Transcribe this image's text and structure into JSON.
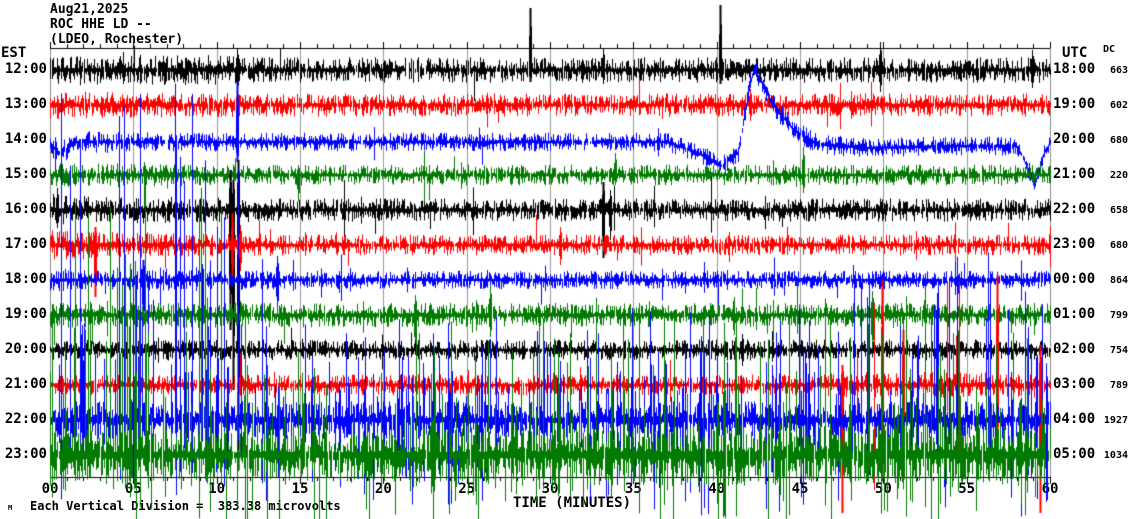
{
  "header": {
    "date": "Aug21,2025",
    "station": "ROC HHE LD --",
    "location": "(LDEO, Rochester)"
  },
  "footer": {
    "scale_note": "Each Vertical Division =  383.38 microvolts",
    "corner_mark": "M"
  },
  "colors": {
    "black": "#000000",
    "red": "#ff0000",
    "blue": "#0000ff",
    "green": "#007a00",
    "grid": "#999999",
    "frame_side": "#8c8c8c",
    "frame_main": "#000000",
    "background": "#ffffff"
  },
  "chart_data": {
    "type": "line",
    "description": "Helicorder seismogram, 12 hourly trace rows of continuous noise, colors cycling black/red/blue/green. Rows listed top to bottom with EST start time (left axis), UTC start time (right axis) and DC offset value (far right column). Large event on 14:00 EST (blue) trace near minute 42; very high amplitude on last two rows.",
    "x_label": "TIME (MINUTES)",
    "x_range_minutes": [
      0,
      60
    ],
    "x_ticks": [
      "00",
      "05",
      "10",
      "15",
      "20",
      "25",
      "30",
      "35",
      "40",
      "45",
      "50",
      "55",
      "60"
    ],
    "left_axis_header": "EST",
    "right_axis_header": "UTC",
    "dc_header": "DC",
    "grid_interval_minutes": 5,
    "minor_tick_minutes": 1,
    "rows": [
      {
        "est": "12:00",
        "utc": "18:00",
        "dc": "663",
        "color": "black",
        "band": [
          [
            0,
            13
          ],
          [
            10,
            13
          ],
          [
            12,
            11
          ],
          [
            60,
            11
          ]
        ],
        "spike_p": 0.012,
        "spike_up": [
          [
            0,
            25
          ],
          [
            60,
            25
          ]
        ],
        "spike_dn": [
          [
            0,
            25
          ],
          [
            60,
            25
          ]
        ],
        "spikes": [
          [
            11.2,
            22,
            22
          ],
          [
            28.8,
            62,
            12
          ],
          [
            33.2,
            22,
            14
          ],
          [
            40.2,
            65,
            14
          ],
          [
            49.8,
            28,
            22
          ],
          [
            58.9,
            20,
            18
          ]
        ]
      },
      {
        "est": "13:00",
        "utc": "19:00",
        "dc": "602",
        "color": "red",
        "band": [
          [
            0,
            12
          ],
          [
            12,
            10
          ],
          [
            60,
            10
          ]
        ],
        "spike_p": 0.01,
        "spike_up": [
          [
            0,
            22
          ],
          [
            60,
            20
          ]
        ],
        "spike_dn": [
          [
            0,
            24
          ],
          [
            60,
            20
          ]
        ],
        "spikes": [
          [
            11.2,
            15,
            40
          ],
          [
            42.0,
            16,
            16
          ]
        ]
      },
      {
        "est": "14:00",
        "utc": "20:00",
        "dc": "680",
        "color": "blue",
        "band": [
          [
            0,
            10
          ],
          [
            12,
            8
          ],
          [
            38,
            8
          ],
          [
            44,
            9
          ],
          [
            60,
            8
          ]
        ],
        "spike_p": 0.008,
        "spike_up": [
          [
            0,
            20
          ],
          [
            60,
            18
          ]
        ],
        "spike_dn": [
          [
            0,
            22
          ],
          [
            60,
            18
          ]
        ],
        "baseline": [
          [
            0,
            4
          ],
          [
            0.6,
            14
          ],
          [
            1.5,
            2
          ],
          [
            37,
            2
          ],
          [
            39,
            14
          ],
          [
            40.3,
            26
          ],
          [
            41.3,
            12
          ],
          [
            41.8,
            -40
          ],
          [
            42.2,
            -72
          ],
          [
            42.6,
            -60
          ],
          [
            43.4,
            -34
          ],
          [
            44.6,
            -10
          ],
          [
            46,
            4
          ],
          [
            49,
            8
          ],
          [
            54,
            6
          ],
          [
            58,
            6
          ],
          [
            58.7,
            30
          ],
          [
            59.1,
            42
          ],
          [
            59.6,
            14
          ],
          [
            60,
            2
          ]
        ],
        "spikes": [
          [
            11.2,
            60,
            20
          ]
        ]
      },
      {
        "est": "15:00",
        "utc": "21:00",
        "dc": "220",
        "color": "green",
        "band": [
          [
            0,
            11
          ],
          [
            12,
            9
          ],
          [
            60,
            9
          ]
        ],
        "spike_p": 0.012,
        "spike_up": [
          [
            0,
            26
          ],
          [
            60,
            22
          ]
        ],
        "spike_dn": [
          [
            0,
            24
          ],
          [
            60,
            22
          ]
        ],
        "spikes": [
          [
            14.9,
            10,
            26
          ],
          [
            33.9,
            22,
            10
          ],
          [
            45.2,
            28,
            18
          ]
        ]
      },
      {
        "est": "16:00",
        "utc": "22:00",
        "dc": "658",
        "color": "black",
        "band": [
          [
            0,
            13
          ],
          [
            13,
            10
          ],
          [
            60,
            10
          ]
        ],
        "spike_p": 0.015,
        "spike_up": [
          [
            0,
            26
          ],
          [
            60,
            22
          ]
        ],
        "spike_dn": [
          [
            0,
            28
          ],
          [
            60,
            22
          ]
        ],
        "spikes": [
          [
            0.4,
            22,
            18
          ],
          [
            10.8,
            40,
            120
          ],
          [
            11.0,
            30,
            180
          ],
          [
            11.3,
            50,
            260
          ],
          [
            33.2,
            28,
            48
          ],
          [
            33.6,
            20,
            30
          ]
        ]
      },
      {
        "est": "17:00",
        "utc": "23:00",
        "dc": "680",
        "color": "red",
        "band": [
          [
            0,
            13
          ],
          [
            13,
            9
          ],
          [
            60,
            9
          ]
        ],
        "spike_p": 0.012,
        "spike_up": [
          [
            0,
            24
          ],
          [
            60,
            20
          ]
        ],
        "spike_dn": [
          [
            0,
            26
          ],
          [
            60,
            20
          ]
        ],
        "spikes": [
          [
            2.7,
            18,
            52
          ],
          [
            10.9,
            32,
            34
          ],
          [
            11.4,
            20,
            26
          ],
          [
            30.6,
            18,
            20
          ]
        ]
      },
      {
        "est": "18:00",
        "utc": "00:00",
        "dc": "864",
        "color": "blue",
        "band": [
          [
            0,
            10
          ],
          [
            15,
            8
          ],
          [
            60,
            8
          ]
        ],
        "spike_p": 0.03,
        "spike_up": [
          [
            0,
            30
          ],
          [
            30,
            22
          ],
          [
            60,
            14
          ]
        ],
        "spike_dn": [
          [
            0,
            36
          ],
          [
            30,
            26
          ],
          [
            60,
            16
          ]
        ],
        "spikes": [
          [
            5.6,
            20,
            44
          ],
          [
            9.1,
            16,
            38
          ],
          [
            13.6,
            24,
            30
          ]
        ]
      },
      {
        "est": "19:00",
        "utc": "01:00",
        "dc": "799",
        "color": "green",
        "band": [
          [
            0,
            11
          ],
          [
            60,
            10
          ]
        ],
        "spike_p": 0.025,
        "spike_up": [
          [
            0,
            26
          ],
          [
            60,
            24
          ]
        ],
        "spike_dn": [
          [
            0,
            30
          ],
          [
            60,
            28
          ]
        ],
        "spikes": [
          [
            21.9,
            20,
            40
          ],
          [
            26.4,
            30,
            22
          ],
          [
            49.3,
            24,
            36
          ]
        ]
      },
      {
        "est": "20:00",
        "utc": "02:00",
        "dc": "754",
        "color": "black",
        "band": [
          [
            0,
            9
          ],
          [
            60,
            9
          ]
        ],
        "spike_p": 0.01,
        "spike_up": [
          [
            0,
            18
          ],
          [
            60,
            18
          ]
        ],
        "spike_dn": [
          [
            0,
            18
          ],
          [
            60,
            18
          ]
        ],
        "spikes": [
          [
            41.5,
            16,
            16
          ]
        ]
      },
      {
        "est": "21:00",
        "utc": "03:00",
        "dc": "789",
        "color": "red",
        "band": [
          [
            0,
            9
          ],
          [
            44,
            9
          ],
          [
            48,
            11
          ],
          [
            60,
            11
          ]
        ],
        "spike_p": 0.02,
        "spike_up": [
          [
            0,
            22
          ],
          [
            44,
            26
          ],
          [
            48,
            100
          ],
          [
            60,
            110
          ]
        ],
        "spike_dn": [
          [
            0,
            24
          ],
          [
            44,
            30
          ],
          [
            48,
            100
          ],
          [
            60,
            120
          ]
        ],
        "spikes": [
          [
            47.5,
            20,
            128
          ],
          [
            49.9,
            105,
            95
          ],
          [
            51.2,
            55,
            95
          ],
          [
            56.8,
            110,
            60
          ],
          [
            59.4,
            40,
            128
          ]
        ]
      },
      {
        "est": "22:00",
        "utc": "04:00",
        "dc": "1927",
        "color": "blue",
        "band": [
          [
            0,
            16
          ],
          [
            60,
            16
          ]
        ],
        "spike_p": 0.22,
        "spike_up": [
          [
            0,
            350
          ],
          [
            11,
            330
          ],
          [
            14,
            130
          ],
          [
            25,
            105
          ],
          [
            35,
            105
          ],
          [
            42,
            125
          ],
          [
            47,
            150
          ],
          [
            52,
            160
          ],
          [
            60,
            150
          ]
        ],
        "spike_dn": [
          [
            0,
            85
          ],
          [
            60,
            95
          ]
        ],
        "spikes": []
      },
      {
        "est": "23:00",
        "utc": "05:00",
        "dc": "1034",
        "color": "green",
        "band": [
          [
            0,
            22
          ],
          [
            15,
            22
          ],
          [
            30,
            26
          ],
          [
            60,
            28
          ]
        ],
        "spike_p": 0.2,
        "spike_up": [
          [
            0,
            290
          ],
          [
            11,
            270
          ],
          [
            14,
            120
          ],
          [
            30,
            140
          ],
          [
            45,
            160
          ],
          [
            60,
            170
          ]
        ],
        "spike_dn": [
          [
            0,
            62
          ],
          [
            60,
            64
          ]
        ],
        "spikes": []
      }
    ]
  }
}
